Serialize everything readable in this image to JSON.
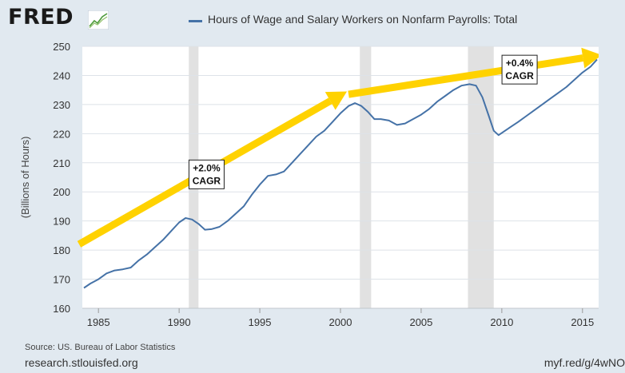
{
  "header": {
    "logo_text": "FRED",
    "logo_icon": "fred-trend-line-icon",
    "legend_label": "Hours of Wage and Salary Workers on Nonfarm Payrolls: Total"
  },
  "footer": {
    "source": "Source: US. Bureau of Labor Statistics",
    "site": "research.stlouisfed.org",
    "short_url": "myf.red/g/4wNO"
  },
  "colors": {
    "page_background": "#e1e9f0",
    "plot_background": "#ffffff",
    "series": "#4572a7",
    "recession_shading": "#e1e1e1",
    "arrow": "#ffd200",
    "grid": "#dde2e8"
  },
  "chart_data": {
    "type": "line",
    "title": "Hours of Wage and Salary Workers on Nonfarm Payrolls: Total",
    "xlabel": "",
    "ylabel": "(Billions of Hours)",
    "xlim": [
      1984,
      2016
    ],
    "ylim": [
      160,
      250
    ],
    "x_ticks": [
      1985,
      1990,
      1995,
      2000,
      2005,
      2010,
      2015
    ],
    "y_ticks": [
      160,
      170,
      180,
      190,
      200,
      210,
      220,
      230,
      240,
      250
    ],
    "grid": true,
    "legend_position": "top",
    "recessions": [
      [
        1990.6,
        1991.2
      ],
      [
        2001.2,
        2001.9
      ],
      [
        2007.9,
        2009.5
      ]
    ],
    "series": [
      {
        "name": "Hours of Wage and Salary Workers on Nonfarm Payrolls: Total",
        "points": [
          [
            1984.1,
            167.0
          ],
          [
            1984.5,
            168.5
          ],
          [
            1985.0,
            170.0
          ],
          [
            1985.5,
            172.0
          ],
          [
            1986.0,
            173.0
          ],
          [
            1986.5,
            173.4
          ],
          [
            1987.0,
            174.0
          ],
          [
            1987.5,
            176.5
          ],
          [
            1988.0,
            178.5
          ],
          [
            1988.5,
            181.0
          ],
          [
            1989.0,
            183.5
          ],
          [
            1989.5,
            186.5
          ],
          [
            1990.0,
            189.5
          ],
          [
            1990.4,
            191.0
          ],
          [
            1990.8,
            190.5
          ],
          [
            1991.2,
            189.0
          ],
          [
            1991.6,
            187.0
          ],
          [
            1992.0,
            187.2
          ],
          [
            1992.5,
            188.0
          ],
          [
            1993.0,
            190.0
          ],
          [
            1993.5,
            192.5
          ],
          [
            1994.0,
            195.0
          ],
          [
            1994.5,
            199.0
          ],
          [
            1995.0,
            202.5
          ],
          [
            1995.5,
            205.5
          ],
          [
            1996.0,
            206.0
          ],
          [
            1996.5,
            207.0
          ],
          [
            1997.0,
            210.0
          ],
          [
            1997.5,
            213.0
          ],
          [
            1998.0,
            216.0
          ],
          [
            1998.5,
            219.0
          ],
          [
            1999.0,
            221.0
          ],
          [
            1999.5,
            224.0
          ],
          [
            2000.0,
            227.0
          ],
          [
            2000.5,
            229.5
          ],
          [
            2000.9,
            230.5
          ],
          [
            2001.3,
            229.5
          ],
          [
            2001.7,
            227.5
          ],
          [
            2002.1,
            225.0
          ],
          [
            2002.5,
            225.0
          ],
          [
            2003.0,
            224.5
          ],
          [
            2003.5,
            223.0
          ],
          [
            2004.0,
            223.5
          ],
          [
            2004.5,
            225.0
          ],
          [
            2005.0,
            226.5
          ],
          [
            2005.5,
            228.5
          ],
          [
            2006.0,
            231.0
          ],
          [
            2006.5,
            233.0
          ],
          [
            2007.0,
            235.0
          ],
          [
            2007.5,
            236.5
          ],
          [
            2008.0,
            237.0
          ],
          [
            2008.4,
            236.5
          ],
          [
            2008.8,
            232.5
          ],
          [
            2009.2,
            226.0
          ],
          [
            2009.5,
            221.0
          ],
          [
            2009.8,
            219.5
          ],
          [
            2010.2,
            221.0
          ],
          [
            2010.6,
            222.5
          ],
          [
            2011.0,
            224.0
          ],
          [
            2011.5,
            226.0
          ],
          [
            2012.0,
            228.0
          ],
          [
            2012.5,
            230.0
          ],
          [
            2013.0,
            232.0
          ],
          [
            2013.5,
            234.0
          ],
          [
            2014.0,
            236.0
          ],
          [
            2014.5,
            238.5
          ],
          [
            2015.0,
            241.0
          ],
          [
            2015.5,
            243.0
          ],
          [
            2015.9,
            245.5
          ]
        ]
      }
    ],
    "annotations": [
      {
        "type": "arrow",
        "from": [
          1983.8,
          182
        ],
        "to": [
          2000.4,
          234.5
        ]
      },
      {
        "type": "arrow",
        "from": [
          2000.5,
          233.5
        ],
        "to": [
          2016.2,
          247
        ]
      },
      {
        "type": "label",
        "text": "+2.0%\nCAGR",
        "at": [
          1991.7,
          206
        ]
      },
      {
        "type": "label",
        "text": "+0.4%\nCAGR",
        "at": [
          2011.1,
          242
        ]
      }
    ]
  }
}
